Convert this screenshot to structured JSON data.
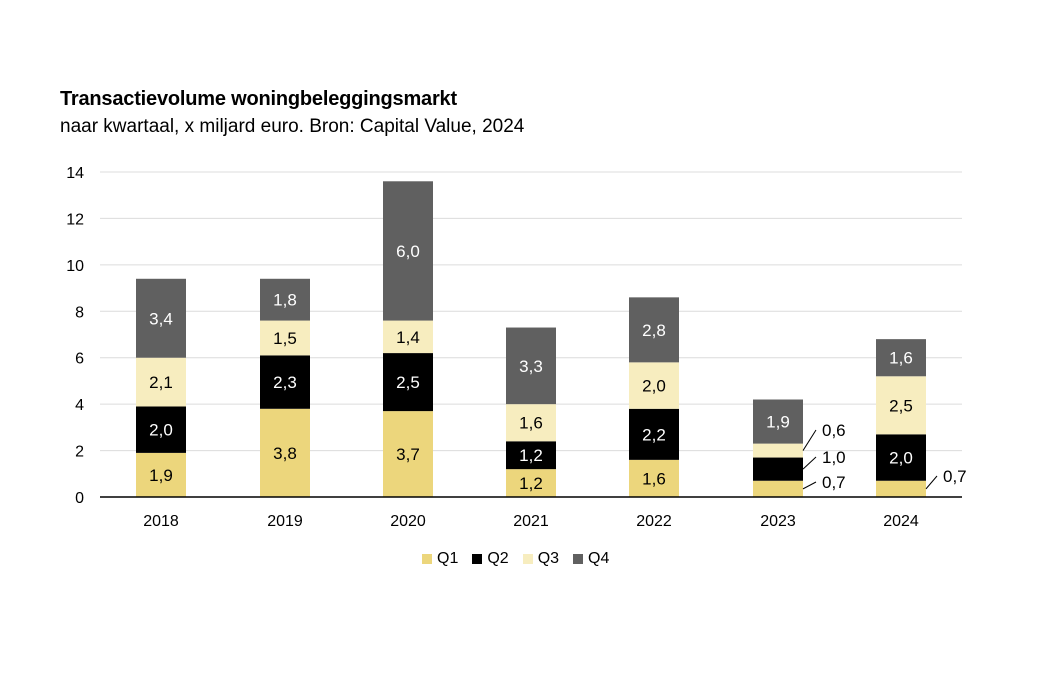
{
  "chart_data": {
    "type": "bar",
    "stacked": true,
    "title": "Transactievolume woningbeleggingsmarkt",
    "subtitle": "naar kwartaal, x miljard euro. Bron: Capital Value, 2024",
    "categories": [
      "2018",
      "2019",
      "2020",
      "2021",
      "2022",
      "2023",
      "2024"
    ],
    "ylim": [
      0,
      14
    ],
    "yticks": [
      "0",
      "2",
      "4",
      "6",
      "8",
      "10",
      "12",
      "14"
    ],
    "grid": true,
    "legend_position": "bottom",
    "series": [
      {
        "name": "Q1",
        "color": "#ecd67c",
        "label_color": "#000000",
        "values": [
          1.9,
          3.8,
          3.7,
          1.2,
          1.6,
          0.7,
          0.7
        ],
        "labels": [
          "1,9",
          "3,8",
          "3,7",
          "1,2",
          "1,6",
          "0,7",
          "0,7"
        ]
      },
      {
        "name": "Q2",
        "color": "#000000",
        "label_color": "#ffffff",
        "values": [
          2.0,
          2.3,
          2.5,
          1.2,
          2.2,
          1.0,
          2.0
        ],
        "labels": [
          "2,0",
          "2,3",
          "2,5",
          "1,2",
          "2,2",
          "1,0",
          "2,0"
        ]
      },
      {
        "name": "Q3",
        "color": "#f7edbf",
        "label_color": "#000000",
        "values": [
          2.1,
          1.5,
          1.4,
          1.6,
          2.0,
          0.6,
          2.5
        ],
        "labels": [
          "2,1",
          "1,5",
          "1,4",
          "1,6",
          "2,0",
          "0,6",
          "2,5"
        ]
      },
      {
        "name": "Q4",
        "color": "#606060",
        "label_color": "#ffffff",
        "values": [
          3.4,
          1.8,
          6.0,
          3.3,
          2.8,
          1.9,
          1.6
        ],
        "labels": [
          "3,4",
          "1,8",
          "6,0",
          "3,3",
          "2,8",
          "1,9",
          "1,6"
        ]
      }
    ]
  }
}
